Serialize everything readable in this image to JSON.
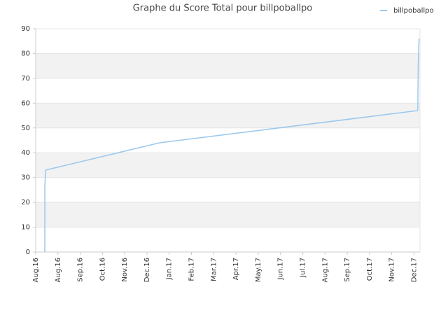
{
  "chart_data": {
    "type": "line",
    "title": "Graphe du Score Total pour billpoballpo",
    "series": [
      {
        "name": "billpoballpo",
        "color": "#99c8ee",
        "x": [
          0.41,
          0.41,
          0.42,
          0.44,
          5.57,
          17.17,
          17.19,
          17.21,
          17.23
        ],
        "values": [
          0,
          27,
          28,
          33,
          44,
          57,
          75,
          82,
          86
        ]
      }
    ],
    "xlim": [
      0,
      17.27
    ],
    "xticks": [
      {
        "value": 0,
        "label": "Aug.16"
      },
      {
        "value": 1,
        "label": "Aug.16"
      },
      {
        "value": 2,
        "label": "Sep.16"
      },
      {
        "value": 3,
        "label": "Oct.16"
      },
      {
        "value": 4,
        "label": "Nov.16"
      },
      {
        "value": 5,
        "label": "Dec.16"
      },
      {
        "value": 6,
        "label": "Jan.17"
      },
      {
        "value": 7,
        "label": "Feb.17"
      },
      {
        "value": 8,
        "label": "Mar.17"
      },
      {
        "value": 9,
        "label": "Apr.17"
      },
      {
        "value": 10,
        "label": "May.17"
      },
      {
        "value": 11,
        "label": "Jun.17"
      },
      {
        "value": 12,
        "label": "Jul.17"
      },
      {
        "value": 13,
        "label": "Aug.17"
      },
      {
        "value": 14,
        "label": "Sep.17"
      },
      {
        "value": 15,
        "label": "Oct.17"
      },
      {
        "value": 16,
        "label": "Nov.17"
      },
      {
        "value": 17,
        "label": "Dec.17"
      }
    ],
    "ylim": [
      0,
      90
    ],
    "yticks": [
      0,
      10,
      20,
      30,
      40,
      50,
      60,
      70,
      80,
      90
    ],
    "grid": true,
    "band_color": "#f2f2f2",
    "legend": "top-right"
  }
}
